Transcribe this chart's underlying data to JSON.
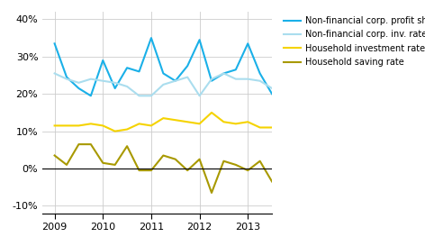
{
  "xlim": [
    2008.75,
    2013.5
  ],
  "ylim": [
    -0.12,
    0.42
  ],
  "yticks": [
    -0.1,
    0.0,
    0.1,
    0.2,
    0.3,
    0.4
  ],
  "ytick_labels": [
    "-10%",
    "0%",
    "10%",
    "20%",
    "30%",
    "40%"
  ],
  "xticks": [
    2009,
    2010,
    2011,
    2012,
    2013
  ],
  "background_color": "#ffffff",
  "grid_color": "#cccccc",
  "series": [
    {
      "label": "Non-financial corp. profit share",
      "color": "#1ab0e8",
      "linewidth": 1.5,
      "x": [
        2009.0,
        2009.25,
        2009.5,
        2009.75,
        2010.0,
        2010.25,
        2010.5,
        2010.75,
        2011.0,
        2011.25,
        2011.5,
        2011.75,
        2012.0,
        2012.25,
        2012.5,
        2012.75,
        2013.0,
        2013.25,
        2013.5
      ],
      "y": [
        0.335,
        0.245,
        0.215,
        0.195,
        0.29,
        0.215,
        0.27,
        0.26,
        0.35,
        0.255,
        0.235,
        0.275,
        0.345,
        0.235,
        0.255,
        0.265,
        0.335,
        0.255,
        0.2
      ]
    },
    {
      "label": "Non-financial corp. inv. rate",
      "color": "#aaddee",
      "linewidth": 1.5,
      "x": [
        2009.0,
        2009.25,
        2009.5,
        2009.75,
        2010.0,
        2010.25,
        2010.5,
        2010.75,
        2011.0,
        2011.25,
        2011.5,
        2011.75,
        2012.0,
        2012.25,
        2012.5,
        2012.75,
        2013.0,
        2013.25,
        2013.5
      ],
      "y": [
        0.255,
        0.24,
        0.23,
        0.24,
        0.235,
        0.23,
        0.22,
        0.195,
        0.195,
        0.225,
        0.235,
        0.245,
        0.195,
        0.24,
        0.255,
        0.24,
        0.24,
        0.235,
        0.215
      ]
    },
    {
      "label": "Household investment rate",
      "color": "#f5d300",
      "linewidth": 1.5,
      "x": [
        2009.0,
        2009.25,
        2009.5,
        2009.75,
        2010.0,
        2010.25,
        2010.5,
        2010.75,
        2011.0,
        2011.25,
        2011.5,
        2011.75,
        2012.0,
        2012.25,
        2012.5,
        2012.75,
        2013.0,
        2013.25,
        2013.5
      ],
      "y": [
        0.115,
        0.115,
        0.115,
        0.12,
        0.115,
        0.1,
        0.105,
        0.12,
        0.115,
        0.135,
        0.13,
        0.125,
        0.12,
        0.15,
        0.125,
        0.12,
        0.125,
        0.11,
        0.11
      ]
    },
    {
      "label": "Household saving rate",
      "color": "#a89900",
      "linewidth": 1.5,
      "x": [
        2009.0,
        2009.25,
        2009.5,
        2009.75,
        2010.0,
        2010.25,
        2010.5,
        2010.75,
        2011.0,
        2011.25,
        2011.5,
        2011.75,
        2012.0,
        2012.25,
        2012.5,
        2012.75,
        2013.0,
        2013.25,
        2013.5
      ],
      "y": [
        0.035,
        0.01,
        0.065,
        0.065,
        0.015,
        0.01,
        0.06,
        -0.005,
        -0.005,
        0.035,
        0.025,
        -0.005,
        0.025,
        -0.065,
        0.02,
        0.01,
        -0.005,
        0.02,
        -0.035
      ]
    }
  ],
  "legend_fontsize": 7.0,
  "zero_line_color": "#000000",
  "tick_fontsize": 8.0
}
